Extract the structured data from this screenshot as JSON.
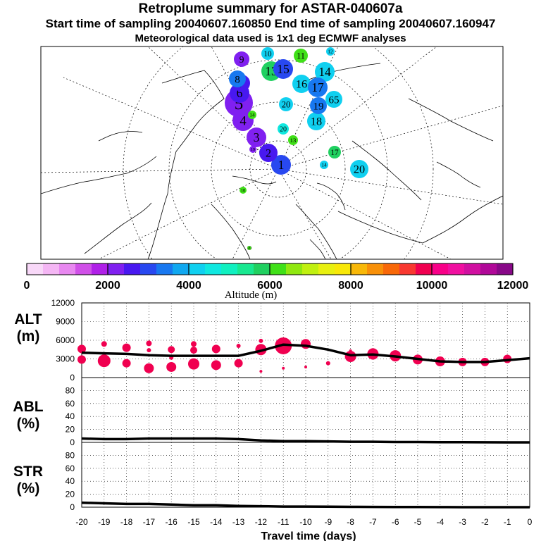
{
  "header": {
    "title": "Retroplume summary for ASTAR-040607a",
    "sampling": "Start time of sampling 20040607.160850     End time of sampling 20040607.160947",
    "met": "Meteorological data used is 1x1 deg ECMWF analyses"
  },
  "colorbar": {
    "label": "Altitude (m)",
    "ticks": [
      "0",
      "2000",
      "4000",
      "6000",
      "8000",
      "10000",
      "12000"
    ],
    "colors": [
      "#f8d8f8",
      "#f4b6f4",
      "#e888f0",
      "#d050e8",
      "#b020e8",
      "#8020f0",
      "#4818f0",
      "#2848f0",
      "#1878f0",
      "#10a8f0",
      "#10d0f0",
      "#10e8e0",
      "#10f0c0",
      "#18e890",
      "#20d060",
      "#40e018",
      "#90e810",
      "#c0f010",
      "#e8f010",
      "#f8e808",
      "#f8b808",
      "#f89008",
      "#f86808",
      "#f83830",
      "#f00050",
      "#f80088",
      "#f010a0",
      "#d010a0",
      "#b00898",
      "#880888"
    ]
  },
  "map": {
    "clusters": [
      {
        "label": "1",
        "color": "#2848f0"
      },
      {
        "label": "2",
        "color": "#4818f0"
      },
      {
        "label": "3",
        "color": "#8020f0"
      },
      {
        "label": "4",
        "color": "#8020f0"
      },
      {
        "label": "5",
        "color": "#8020f0"
      },
      {
        "label": "6",
        "color": "#4818f0"
      },
      {
        "label": "7",
        "color": "#4818f0"
      },
      {
        "label": "8",
        "color": "#1878f0"
      },
      {
        "label": "9",
        "color": "#8020f0"
      },
      {
        "label": "10",
        "color": "#10d0f0"
      },
      {
        "label": "11",
        "color": "#40e018"
      },
      {
        "label": "12",
        "color": "#10d0f0"
      },
      {
        "label": "13",
        "color": "#20d060"
      },
      {
        "label": "14",
        "color": "#10d0f0"
      },
      {
        "label": "15",
        "color": "#2848f0"
      },
      {
        "label": "16",
        "color": "#10d0f0"
      },
      {
        "label": "17",
        "color": "#1878f0"
      },
      {
        "label": "18",
        "color": "#10d0f0"
      },
      {
        "label": "19",
        "color": "#1878f0"
      },
      {
        "label": "20",
        "color": "#10d0f0"
      },
      {
        "label": "65",
        "color": "#10d0f0"
      },
      {
        "label": "17",
        "color": "#20d060"
      },
      {
        "label": "20",
        "color": "#10d0f0"
      },
      {
        "label": "14",
        "color": "#10d0f0"
      },
      {
        "label": "13",
        "color": "#40e018"
      },
      {
        "label": "20",
        "color": "#10e8e0"
      },
      {
        "label": "19",
        "color": "#8020f0"
      },
      {
        "label": "14",
        "color": "#40e018"
      },
      {
        "label": "18",
        "color": "#40e018"
      },
      {
        "label": "20",
        "color": "#40e018"
      }
    ]
  },
  "chart_data": [
    {
      "type": "scatter",
      "panel": "altitude",
      "ylabel": "ALT\n(m)",
      "ylabel_lines": [
        "ALT",
        "(m)"
      ],
      "xlim": [
        -20,
        0
      ],
      "ylim": [
        0,
        12000
      ],
      "yticks": [
        "0",
        "3000",
        "6000",
        "9000",
        "12000"
      ],
      "marker_color": "#f00050",
      "mean_line": {
        "x": [
          -20,
          -19,
          -18,
          -17,
          -16,
          -15,
          -14,
          -13,
          -12,
          -11,
          -10,
          -9,
          -8,
          -7,
          -6,
          -5,
          -4,
          -3,
          -2,
          -1,
          0
        ],
        "y": [
          4000,
          3900,
          3800,
          3600,
          3500,
          3500,
          3500,
          3500,
          4300,
          5300,
          5100,
          4500,
          3600,
          3700,
          3400,
          3000,
          2600,
          2500,
          2500,
          2800,
          3100
        ]
      },
      "markers": [
        {
          "x": -20,
          "y": 4600,
          "size": 6
        },
        {
          "x": -20,
          "y": 2900,
          "size": 6
        },
        {
          "x": -19,
          "y": 5400,
          "size": 4
        },
        {
          "x": -19,
          "y": 2700,
          "size": 9
        },
        {
          "x": -18,
          "y": 4800,
          "size": 6
        },
        {
          "x": -18,
          "y": 2300,
          "size": 6
        },
        {
          "x": -17,
          "y": 5500,
          "size": 4
        },
        {
          "x": -17,
          "y": 4400,
          "size": 3
        },
        {
          "x": -17,
          "y": 1500,
          "size": 7
        },
        {
          "x": -16,
          "y": 4500,
          "size": 5
        },
        {
          "x": -16,
          "y": 3200,
          "size": 3
        },
        {
          "x": -16,
          "y": 1700,
          "size": 7
        },
        {
          "x": -15,
          "y": 5400,
          "size": 4
        },
        {
          "x": -15,
          "y": 4400,
          "size": 5
        },
        {
          "x": -15,
          "y": 2200,
          "size": 8
        },
        {
          "x": -14,
          "y": 4600,
          "size": 6
        },
        {
          "x": -14,
          "y": 2000,
          "size": 7
        },
        {
          "x": -13,
          "y": 5100,
          "size": 3
        },
        {
          "x": -13,
          "y": 2300,
          "size": 6
        },
        {
          "x": -12,
          "y": 5900,
          "size": 3
        },
        {
          "x": -12,
          "y": 4500,
          "size": 8
        },
        {
          "x": -12,
          "y": 1000,
          "size": 2
        },
        {
          "x": -11,
          "y": 5100,
          "size": 12
        },
        {
          "x": -11,
          "y": 1500,
          "size": 2
        },
        {
          "x": -10,
          "y": 5400,
          "size": 7
        },
        {
          "x": -10,
          "y": 1700,
          "size": 2
        },
        {
          "x": -9,
          "y": 2300,
          "size": 3
        },
        {
          "x": -8,
          "y": 3400,
          "size": 8
        },
        {
          "x": -8,
          "y": 4300,
          "size": 2
        },
        {
          "x": -7,
          "y": 3800,
          "size": 8
        },
        {
          "x": -6,
          "y": 3500,
          "size": 8
        },
        {
          "x": -5,
          "y": 2900,
          "size": 7
        },
        {
          "x": -4,
          "y": 2600,
          "size": 7
        },
        {
          "x": -3,
          "y": 2500,
          "size": 6
        },
        {
          "x": -2,
          "y": 2500,
          "size": 6
        },
        {
          "x": -1,
          "y": 3000,
          "size": 6
        }
      ]
    },
    {
      "type": "line",
      "panel": "abl",
      "ylabel_lines": [
        "ABL",
        "(%)"
      ],
      "xlim": [
        -20,
        0
      ],
      "ylim": [
        0,
        100
      ],
      "yticks": [
        "0",
        "20",
        "40",
        "60",
        "80"
      ],
      "x": [
        -20,
        -19,
        -18,
        -17,
        -16,
        -15,
        -14,
        -13,
        -12,
        -11,
        -10,
        -9,
        -8,
        -7,
        -6,
        -5,
        -4,
        -3,
        -2,
        -1,
        0
      ],
      "y": [
        6,
        5,
        5,
        6,
        6,
        6,
        6,
        5,
        3,
        2,
        2,
        1.5,
        1,
        1,
        0.5,
        0.5,
        0.3,
        0.2,
        0.1,
        0,
        0
      ]
    },
    {
      "type": "line",
      "panel": "str",
      "ylabel_lines": [
        "STR",
        "(%)"
      ],
      "xlim": [
        -20,
        0
      ],
      "ylim": [
        0,
        100
      ],
      "yticks": [
        "0",
        "20",
        "40",
        "60",
        "80"
      ],
      "x": [
        -20,
        -19,
        -18,
        -17,
        -16,
        -15,
        -14,
        -13,
        -12,
        -11,
        -10,
        -9,
        -8,
        -7,
        -6,
        -5,
        -4,
        -3,
        -2,
        -1,
        0
      ],
      "y": [
        7,
        6,
        5,
        5,
        4,
        3,
        3,
        2,
        1.5,
        1,
        1,
        0.8,
        0.5,
        0.4,
        0.3,
        0.2,
        0.1,
        0,
        0,
        0,
        0
      ],
      "xlabel": "Travel time (days)",
      "xticks": [
        "-20",
        "-19",
        "-18",
        "-17",
        "-16",
        "-15",
        "-14",
        "-13",
        "-12",
        "-11",
        "-10",
        "-9",
        "-8",
        "-7",
        "-6",
        "-5",
        "-4",
        "-3",
        "-2",
        "-1",
        "0"
      ]
    }
  ]
}
